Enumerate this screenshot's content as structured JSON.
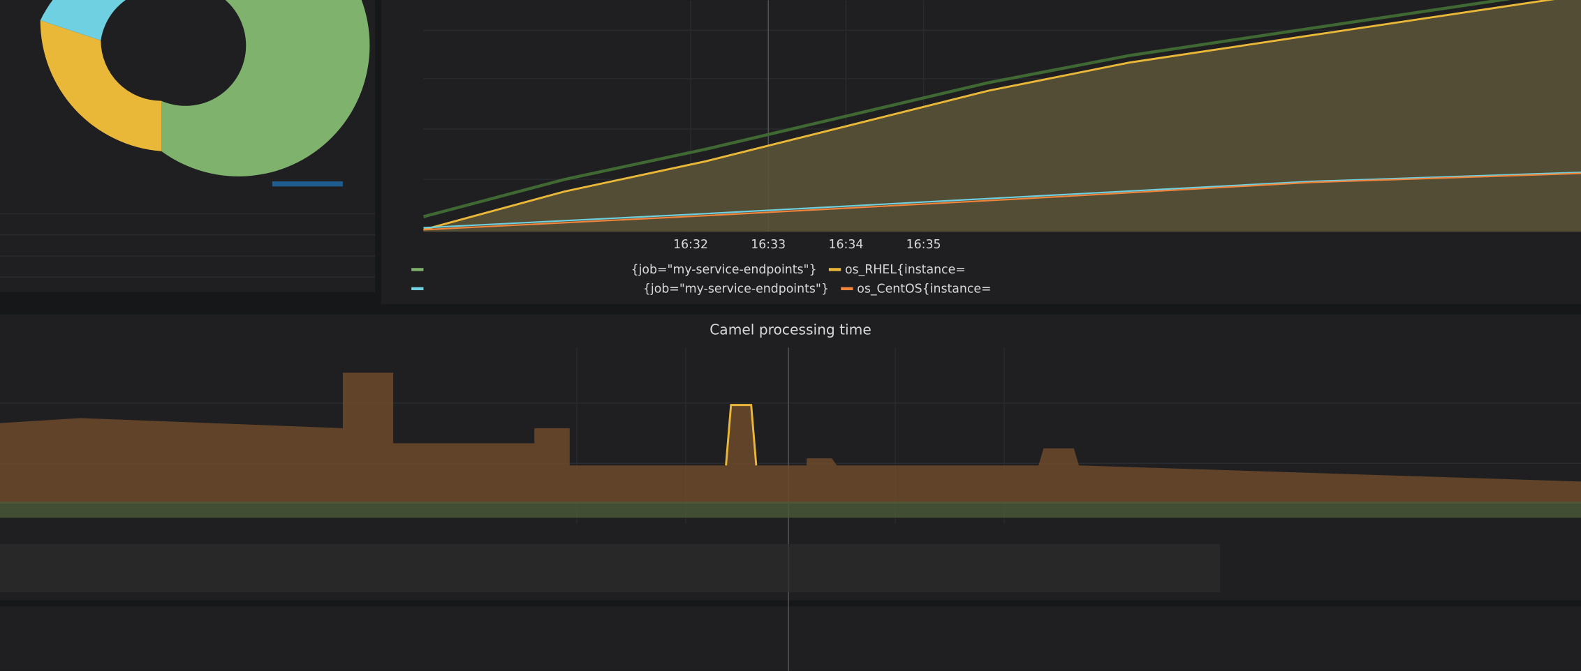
{
  "time_axis": {
    "ticks": [
      "16:32",
      "16:33",
      "16:34",
      "16:35"
    ]
  },
  "legend": {
    "items": [
      {
        "label": "{job=\"my-service-endpoints\"}"
      },
      {
        "label": "os_RHEL{instance="
      },
      {
        "label": "{job=\"my-service-endpoints\"}"
      },
      {
        "label": "os_CentOS{instance="
      }
    ]
  },
  "panels": {
    "camel_title": "Camel processing time"
  }
}
